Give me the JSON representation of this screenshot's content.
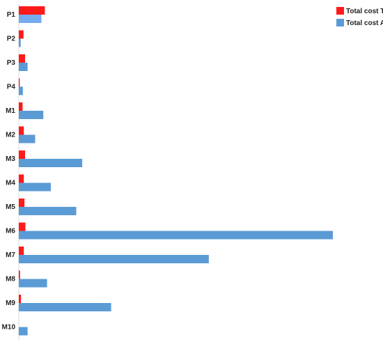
{
  "chart_data": {
    "type": "bar",
    "orientation": "horizontal",
    "title": "",
    "xlabel": "",
    "ylabel": "",
    "grid": false,
    "legend_position": "top-right",
    "categories": [
      "P1",
      "P2",
      "P3",
      "P4",
      "M1",
      "M2",
      "M3",
      "M4",
      "M5",
      "M6",
      "M7",
      "M8",
      "M9",
      "M10"
    ],
    "xlim": [
      0,
      100
    ],
    "series": [
      {
        "name": "Total cost TM",
        "color": "#ff1a1a",
        "values": [
          8.3,
          1.5,
          2.0,
          0.3,
          1.2,
          1.6,
          2.0,
          1.6,
          1.8,
          2.1,
          1.6,
          0.4,
          0.7,
          0.0
        ]
      },
      {
        "name": "Total cost AM",
        "color": "#5b9bd5",
        "values": [
          7.2,
          0.6,
          2.8,
          1.3,
          7.8,
          5.2,
          20.2,
          10.2,
          18.3,
          100.0,
          60.5,
          9.0,
          29.4,
          2.8
        ]
      }
    ]
  }
}
